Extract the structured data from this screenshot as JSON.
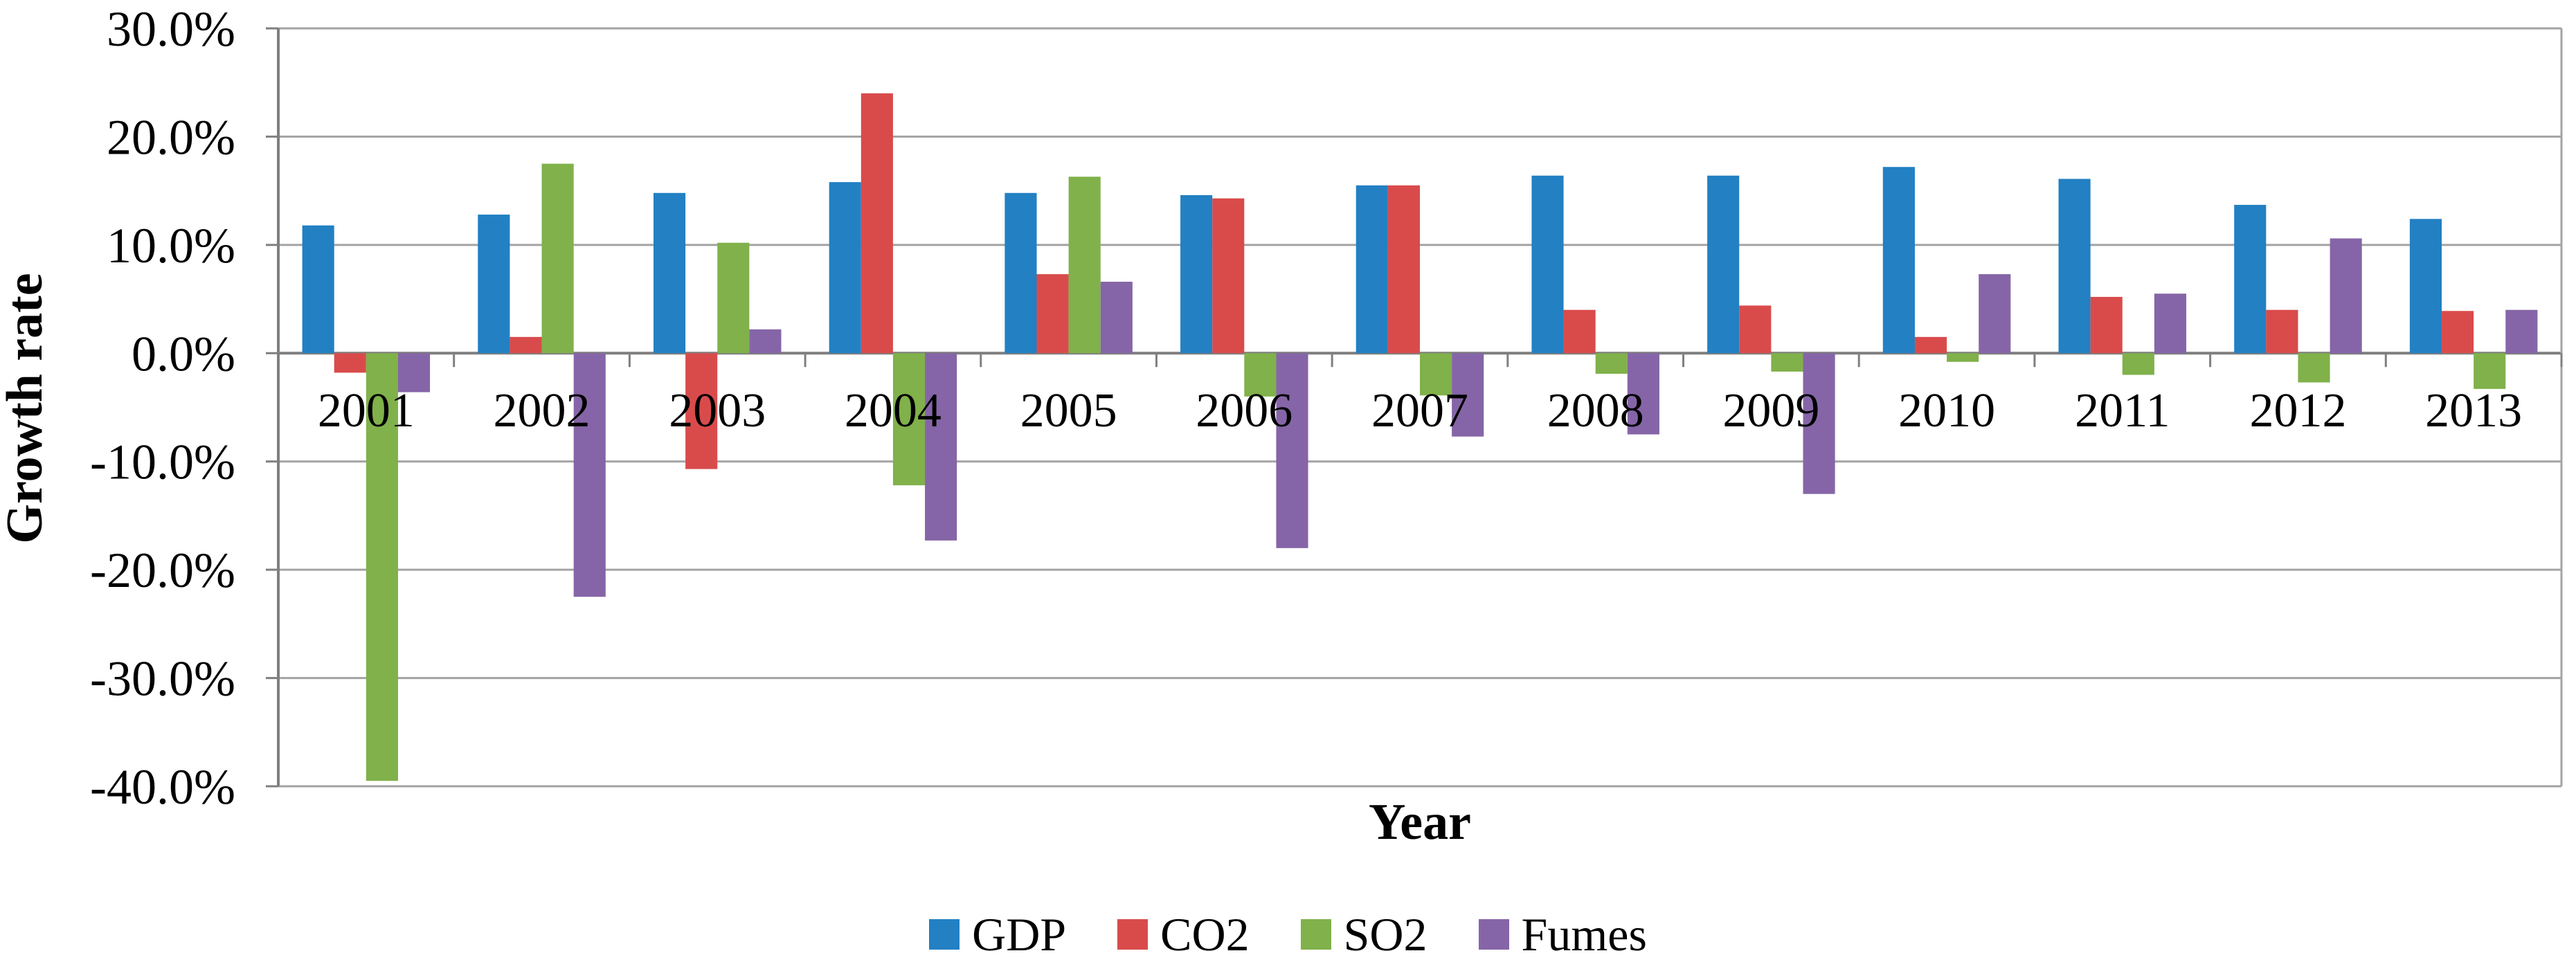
{
  "chart_data": {
    "type": "bar",
    "title": "",
    "xlabel": "Year",
    "ylabel": "Growth rate",
    "values_unit": "percent",
    "categories": [
      "2001",
      "2002",
      "2003",
      "2004",
      "2005",
      "2006",
      "2007",
      "2008",
      "2009",
      "2010",
      "2011",
      "2012",
      "2013"
    ],
    "series": [
      {
        "name": "GDP",
        "color": "#2280C3",
        "values": [
          11.8,
          12.8,
          14.8,
          15.8,
          14.8,
          14.6,
          15.5,
          16.4,
          16.4,
          17.2,
          16.1,
          13.7,
          12.4
        ]
      },
      {
        "name": "CO2",
        "color": "#D94B4B",
        "values": [
          -1.8,
          1.5,
          -10.7,
          24.0,
          7.3,
          14.3,
          15.5,
          4.0,
          4.4,
          1.5,
          5.2,
          4.0,
          3.9
        ]
      },
      {
        "name": "SO2",
        "color": "#80B14A",
        "values": [
          -39.5,
          17.5,
          10.2,
          -12.2,
          16.3,
          -4.0,
          -3.9,
          -1.9,
          -1.7,
          -0.8,
          -2.0,
          -2.7,
          -3.3
        ]
      },
      {
        "name": "Fumes",
        "color": "#8565A7",
        "values": [
          -3.6,
          -22.5,
          2.2,
          -17.3,
          6.6,
          -18.0,
          -7.7,
          -7.5,
          -13.0,
          7.3,
          5.5,
          10.6,
          4.0
        ]
      }
    ],
    "y_axis": {
      "min": -40,
      "max": 30,
      "step": 10,
      "tick_labels": [
        "30.0%",
        "20.0%",
        "10.0%",
        "0.0%",
        "-10.0%",
        "-20.0%",
        "-30.0%",
        "-40.0%"
      ]
    },
    "grid": true,
    "legend_position": "bottom-center"
  },
  "styles": {
    "grid_color": "#A3A3A3",
    "axis_color": "#7F7F7F",
    "text_color": "#000000",
    "background": "#FFFFFF"
  }
}
